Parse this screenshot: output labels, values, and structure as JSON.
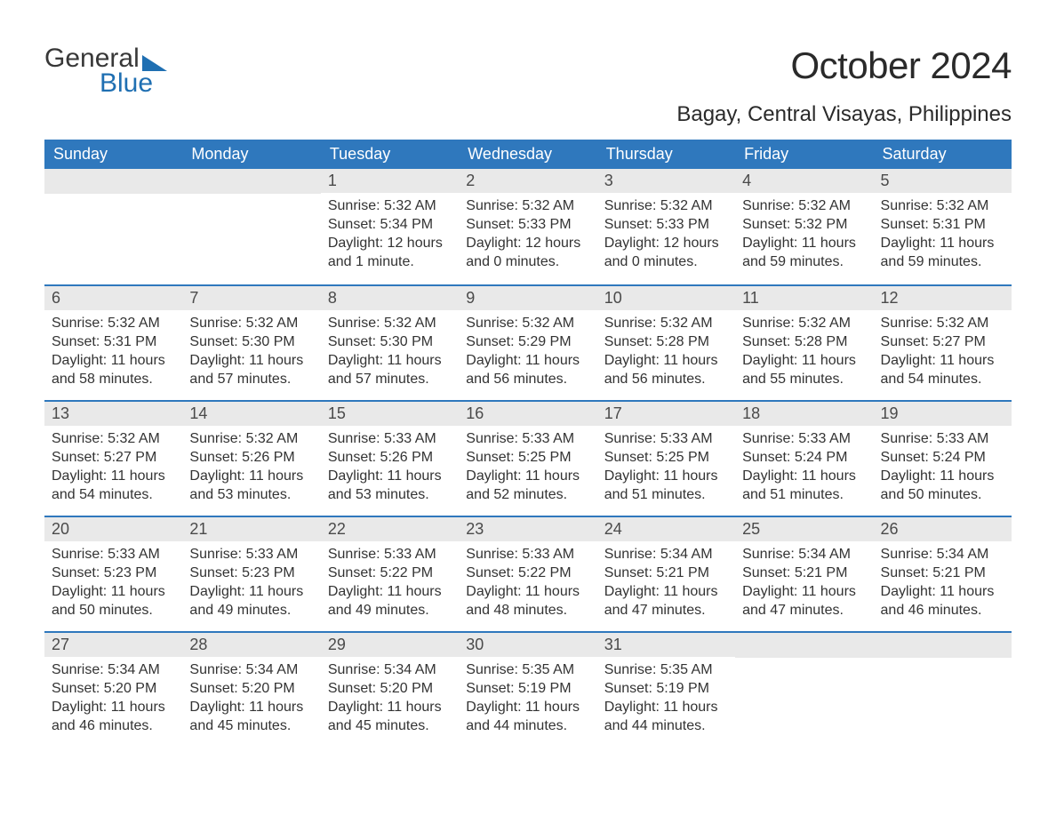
{
  "logo": {
    "word1": "General",
    "word2": "Blue"
  },
  "title": "October 2024",
  "subtitle": "Bagay, Central Visayas, Philippines",
  "colors": {
    "header_bg": "#2f78bd",
    "header_text": "#ffffff",
    "daynum_bg": "#e9e9e9",
    "week_divider": "#2f78bd",
    "body_text": "#333333",
    "title_text": "#2a2a2a",
    "logo_general": "#383838",
    "logo_blue": "#1f6fb2",
    "page_bg": "#ffffff"
  },
  "typography": {
    "title_fontsize": 42,
    "subtitle_fontsize": 24,
    "header_fontsize": 18,
    "daynum_fontsize": 18,
    "body_fontsize": 16,
    "logo_fontsize": 30
  },
  "weekdays": [
    "Sunday",
    "Monday",
    "Tuesday",
    "Wednesday",
    "Thursday",
    "Friday",
    "Saturday"
  ],
  "weeks": [
    [
      null,
      null,
      {
        "n": "1",
        "sr": "5:32 AM",
        "ss": "5:34 PM",
        "dl": "12 hours and 1 minute."
      },
      {
        "n": "2",
        "sr": "5:32 AM",
        "ss": "5:33 PM",
        "dl": "12 hours and 0 minutes."
      },
      {
        "n": "3",
        "sr": "5:32 AM",
        "ss": "5:33 PM",
        "dl": "12 hours and 0 minutes."
      },
      {
        "n": "4",
        "sr": "5:32 AM",
        "ss": "5:32 PM",
        "dl": "11 hours and 59 minutes."
      },
      {
        "n": "5",
        "sr": "5:32 AM",
        "ss": "5:31 PM",
        "dl": "11 hours and 59 minutes."
      }
    ],
    [
      {
        "n": "6",
        "sr": "5:32 AM",
        "ss": "5:31 PM",
        "dl": "11 hours and 58 minutes."
      },
      {
        "n": "7",
        "sr": "5:32 AM",
        "ss": "5:30 PM",
        "dl": "11 hours and 57 minutes."
      },
      {
        "n": "8",
        "sr": "5:32 AM",
        "ss": "5:30 PM",
        "dl": "11 hours and 57 minutes."
      },
      {
        "n": "9",
        "sr": "5:32 AM",
        "ss": "5:29 PM",
        "dl": "11 hours and 56 minutes."
      },
      {
        "n": "10",
        "sr": "5:32 AM",
        "ss": "5:28 PM",
        "dl": "11 hours and 56 minutes."
      },
      {
        "n": "11",
        "sr": "5:32 AM",
        "ss": "5:28 PM",
        "dl": "11 hours and 55 minutes."
      },
      {
        "n": "12",
        "sr": "5:32 AM",
        "ss": "5:27 PM",
        "dl": "11 hours and 54 minutes."
      }
    ],
    [
      {
        "n": "13",
        "sr": "5:32 AM",
        "ss": "5:27 PM",
        "dl": "11 hours and 54 minutes."
      },
      {
        "n": "14",
        "sr": "5:32 AM",
        "ss": "5:26 PM",
        "dl": "11 hours and 53 minutes."
      },
      {
        "n": "15",
        "sr": "5:33 AM",
        "ss": "5:26 PM",
        "dl": "11 hours and 53 minutes."
      },
      {
        "n": "16",
        "sr": "5:33 AM",
        "ss": "5:25 PM",
        "dl": "11 hours and 52 minutes."
      },
      {
        "n": "17",
        "sr": "5:33 AM",
        "ss": "5:25 PM",
        "dl": "11 hours and 51 minutes."
      },
      {
        "n": "18",
        "sr": "5:33 AM",
        "ss": "5:24 PM",
        "dl": "11 hours and 51 minutes."
      },
      {
        "n": "19",
        "sr": "5:33 AM",
        "ss": "5:24 PM",
        "dl": "11 hours and 50 minutes."
      }
    ],
    [
      {
        "n": "20",
        "sr": "5:33 AM",
        "ss": "5:23 PM",
        "dl": "11 hours and 50 minutes."
      },
      {
        "n": "21",
        "sr": "5:33 AM",
        "ss": "5:23 PM",
        "dl": "11 hours and 49 minutes."
      },
      {
        "n": "22",
        "sr": "5:33 AM",
        "ss": "5:22 PM",
        "dl": "11 hours and 49 minutes."
      },
      {
        "n": "23",
        "sr": "5:33 AM",
        "ss": "5:22 PM",
        "dl": "11 hours and 48 minutes."
      },
      {
        "n": "24",
        "sr": "5:34 AM",
        "ss": "5:21 PM",
        "dl": "11 hours and 47 minutes."
      },
      {
        "n": "25",
        "sr": "5:34 AM",
        "ss": "5:21 PM",
        "dl": "11 hours and 47 minutes."
      },
      {
        "n": "26",
        "sr": "5:34 AM",
        "ss": "5:21 PM",
        "dl": "11 hours and 46 minutes."
      }
    ],
    [
      {
        "n": "27",
        "sr": "5:34 AM",
        "ss": "5:20 PM",
        "dl": "11 hours and 46 minutes."
      },
      {
        "n": "28",
        "sr": "5:34 AM",
        "ss": "5:20 PM",
        "dl": "11 hours and 45 minutes."
      },
      {
        "n": "29",
        "sr": "5:34 AM",
        "ss": "5:20 PM",
        "dl": "11 hours and 45 minutes."
      },
      {
        "n": "30",
        "sr": "5:35 AM",
        "ss": "5:19 PM",
        "dl": "11 hours and 44 minutes."
      },
      {
        "n": "31",
        "sr": "5:35 AM",
        "ss": "5:19 PM",
        "dl": "11 hours and 44 minutes."
      },
      null,
      null
    ]
  ],
  "labels": {
    "sunrise": "Sunrise: ",
    "sunset": "Sunset: ",
    "daylight": "Daylight: "
  }
}
